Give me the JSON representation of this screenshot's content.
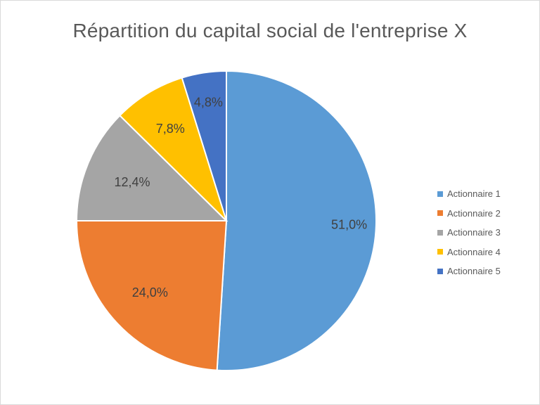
{
  "chart_data": {
    "type": "pie",
    "title": "Répartition du capital social de l'entreprise X",
    "categories": [
      "Actionnaire 1",
      "Actionnaire 2",
      "Actionnaire 3",
      "Actionnaire 4",
      "Actionnaire 5"
    ],
    "values": [
      51.0,
      24.0,
      12.4,
      7.8,
      4.8
    ],
    "labels": [
      "51,0%",
      "24,0%",
      "12,4%",
      "7,8%",
      "4,8%"
    ],
    "colors": [
      "#5b9bd5",
      "#ed7d31",
      "#a5a5a5",
      "#ffc000",
      "#4472c4"
    ],
    "start_angle": "12 o'clock",
    "direction": "clockwise",
    "legend_position": "right"
  },
  "title": "Répartition du capital social de l'entreprise X",
  "legend": [
    {
      "label": "Actionnaire 1",
      "color": "#5b9bd5"
    },
    {
      "label": "Actionnaire 2",
      "color": "#ed7d31"
    },
    {
      "label": "Actionnaire 3",
      "color": "#a5a5a5"
    },
    {
      "label": "Actionnaire 4",
      "color": "#ffc000"
    },
    {
      "label": "Actionnaire 5",
      "color": "#4472c4"
    }
  ]
}
